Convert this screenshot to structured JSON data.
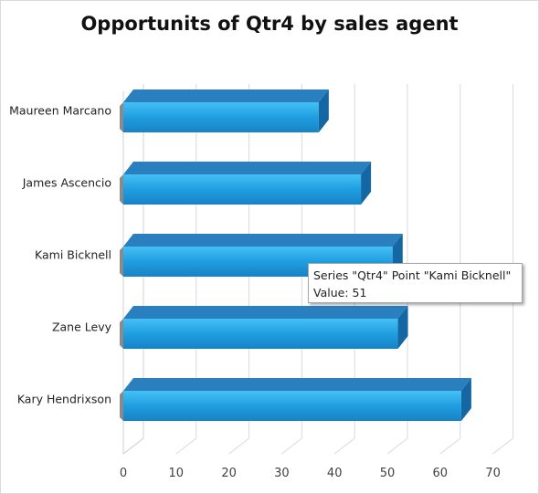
{
  "chart_data": {
    "type": "bar",
    "orientation": "horizontal",
    "title": "Opportunits of Qtr4 by sales agent",
    "categories": [
      "Maureen Marcano",
      "James Ascencio",
      "Kami Bicknell",
      "Zane Levy",
      "Kary Hendrixson"
    ],
    "series": [
      {
        "name": "Qtr4",
        "values": [
          37,
          45,
          51,
          52,
          64
        ]
      }
    ],
    "xlim": [
      0,
      70
    ],
    "x_ticks": [
      "0",
      "10",
      "20",
      "30",
      "40",
      "50",
      "60",
      "70"
    ],
    "grid": true,
    "legend": "none",
    "bar_color": "#1f9ee0",
    "bar_dark": "#1467a3"
  },
  "tooltip": {
    "line1": "Series \"Qtr4\" Point \"Kami Bicknell\"",
    "line2": "Value: 51"
  }
}
